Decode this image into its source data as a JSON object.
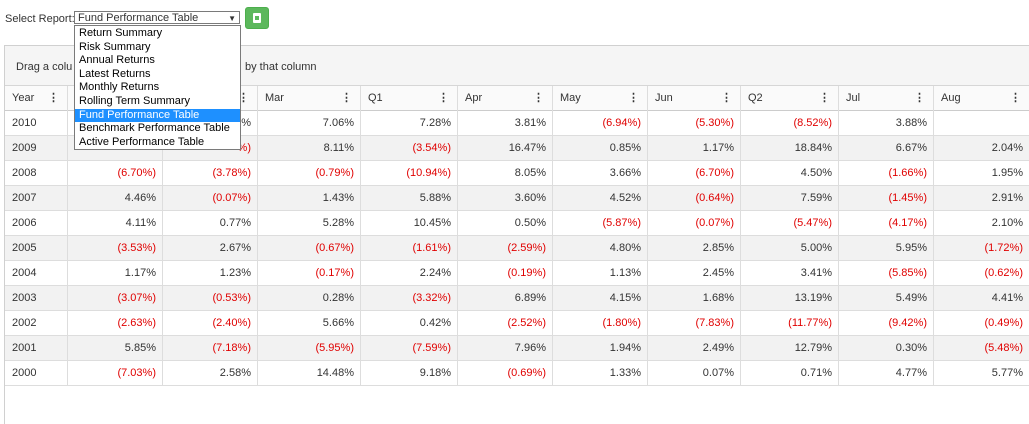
{
  "report_selector": {
    "label": "Select Report:",
    "selected": "Fund Performance Table",
    "options": [
      "Return Summary",
      "Risk Summary",
      "Annual Returns",
      "Latest Returns",
      "Monthly Returns",
      "Rolling Term Summary",
      "Fund Performance Table",
      "Benchmark Performance Table",
      "Active Performance Table"
    ]
  },
  "export_button": {
    "icon": "excel-file-icon",
    "color": "#5cb85c"
  },
  "group_bar": {
    "text_left": "Drag a colu",
    "text_right": "by that column"
  },
  "columns": [
    "Year",
    "",
    "",
    "Mar",
    "Q1",
    "Apr",
    "May",
    "Jun",
    "Q2",
    "Jul",
    "Aug"
  ],
  "menu_icon": "⋮",
  "negative_color": "#e00000",
  "rows": [
    {
      "year": "2010",
      "cells": [
        "",
        "%",
        "7.06%",
        "7.28%",
        "3.81%",
        "(6.94%)",
        "(5.30%)",
        "(8.52%)",
        "3.88%",
        ""
      ]
    },
    {
      "year": "2009",
      "cells": [
        "",
        "%)",
        "8.11%",
        "(3.54%)",
        "16.47%",
        "0.85%",
        "1.17%",
        "18.84%",
        "6.67%",
        "2.04%"
      ]
    },
    {
      "year": "2008",
      "cells": [
        "(6.70%)",
        "(3.78%)",
        "(0.79%)",
        "(10.94%)",
        "8.05%",
        "3.66%",
        "(6.70%)",
        "4.50%",
        "(1.66%)",
        "1.95%"
      ]
    },
    {
      "year": "2007",
      "cells": [
        "4.46%",
        "(0.07%)",
        "1.43%",
        "5.88%",
        "3.60%",
        "4.52%",
        "(0.64%)",
        "7.59%",
        "(1.45%)",
        "2.91%"
      ]
    },
    {
      "year": "2006",
      "cells": [
        "4.11%",
        "0.77%",
        "5.28%",
        "10.45%",
        "0.50%",
        "(5.87%)",
        "(0.07%)",
        "(5.47%)",
        "(4.17%)",
        "2.10%"
      ]
    },
    {
      "year": "2005",
      "cells": [
        "(3.53%)",
        "2.67%",
        "(0.67%)",
        "(1.61%)",
        "(2.59%)",
        "4.80%",
        "2.85%",
        "5.00%",
        "5.95%",
        "(1.72%)"
      ]
    },
    {
      "year": "2004",
      "cells": [
        "1.17%",
        "1.23%",
        "(0.17%)",
        "2.24%",
        "(0.19%)",
        "1.13%",
        "2.45%",
        "3.41%",
        "(5.85%)",
        "(0.62%)"
      ]
    },
    {
      "year": "2003",
      "cells": [
        "(3.07%)",
        "(0.53%)",
        "0.28%",
        "(3.32%)",
        "6.89%",
        "4.15%",
        "1.68%",
        "13.19%",
        "5.49%",
        "4.41%"
      ]
    },
    {
      "year": "2002",
      "cells": [
        "(2.63%)",
        "(2.40%)",
        "5.66%",
        "0.42%",
        "(2.52%)",
        "(1.80%)",
        "(7.83%)",
        "(11.77%)",
        "(9.42%)",
        "(0.49%)"
      ]
    },
    {
      "year": "2001",
      "cells": [
        "5.85%",
        "(7.18%)",
        "(5.95%)",
        "(7.59%)",
        "7.96%",
        "1.94%",
        "2.49%",
        "12.79%",
        "0.30%",
        "(5.48%)"
      ]
    },
    {
      "year": "2000",
      "cells": [
        "(7.03%)",
        "2.58%",
        "14.48%",
        "9.18%",
        "(0.69%)",
        "1.33%",
        "0.07%",
        "0.71%",
        "4.77%",
        "5.77%"
      ]
    }
  ]
}
